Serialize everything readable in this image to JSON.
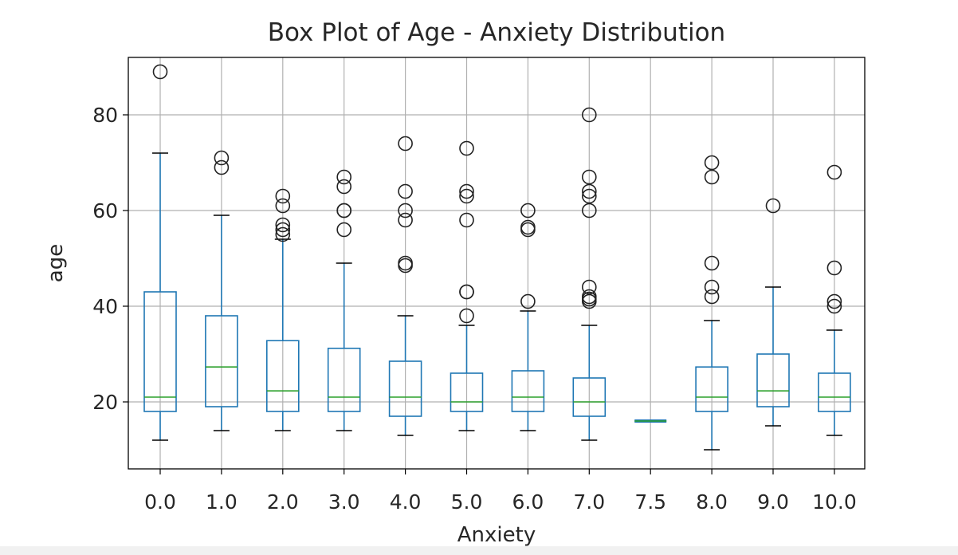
{
  "chart_data": {
    "type": "box",
    "title": "Box Plot of Age - Anxiety Distribution",
    "xlabel": "Anxiety",
    "ylabel": "age",
    "categories": [
      "0.0",
      "1.0",
      "2.0",
      "3.0",
      "4.0",
      "5.0",
      "6.0",
      "7.0",
      "7.5",
      "8.0",
      "9.0",
      "10.0"
    ],
    "y_ticks": [
      20,
      40,
      60,
      80
    ],
    "ylim": [
      6,
      92
    ],
    "grid": true,
    "colors": {
      "box": "#1f77b4",
      "median": "#2ca02c",
      "flier": "#222222",
      "grid": "#b0b0b0"
    },
    "boxes": [
      {
        "category": "0.0",
        "whislo": 12,
        "q1": 18,
        "med": 21,
        "q3": 43,
        "whishi": 72,
        "fliers": [
          89
        ]
      },
      {
        "category": "1.0",
        "whislo": 14,
        "q1": 19,
        "med": 27.3,
        "q3": 38,
        "whishi": 59,
        "fliers": [
          69,
          71
        ]
      },
      {
        "category": "2.0",
        "whislo": 14,
        "q1": 18,
        "med": 22.3,
        "q3": 32.8,
        "whishi": 54,
        "fliers": [
          55,
          56,
          57,
          61,
          63
        ]
      },
      {
        "category": "3.0",
        "whislo": 14,
        "q1": 18,
        "med": 21,
        "q3": 31.2,
        "whishi": 49,
        "fliers": [
          56,
          60,
          60,
          65,
          67
        ]
      },
      {
        "category": "4.0",
        "whislo": 13,
        "q1": 17,
        "med": 21,
        "q3": 28.5,
        "whishi": 38,
        "fliers": [
          48.5,
          49,
          58,
          60,
          64,
          74
        ]
      },
      {
        "category": "5.0",
        "whislo": 14,
        "q1": 18,
        "med": 20,
        "q3": 26,
        "whishi": 36,
        "fliers": [
          38,
          43,
          43,
          58,
          63,
          64,
          73
        ]
      },
      {
        "category": "6.0",
        "whislo": 14,
        "q1": 18,
        "med": 21,
        "q3": 26.5,
        "whishi": 39,
        "fliers": [
          41,
          56,
          56.5,
          60
        ]
      },
      {
        "category": "7.0",
        "whislo": 12,
        "q1": 17,
        "med": 20,
        "q3": 25,
        "whishi": 36,
        "fliers": [
          41,
          41.5,
          42,
          44,
          60,
          63,
          64,
          67,
          80
        ]
      },
      {
        "category": "7.5",
        "whislo": 16,
        "q1": 16,
        "med": 16,
        "q3": 16,
        "whishi": 16,
        "fliers": []
      },
      {
        "category": "8.0",
        "whislo": 10,
        "q1": 18,
        "med": 21,
        "q3": 27.3,
        "whishi": 37,
        "fliers": [
          42,
          44,
          49,
          67,
          70
        ]
      },
      {
        "category": "9.0",
        "whislo": 15,
        "q1": 19,
        "med": 22.3,
        "q3": 30,
        "whishi": 44,
        "fliers": [
          61
        ]
      },
      {
        "category": "10.0",
        "whislo": 13,
        "q1": 18,
        "med": 21,
        "q3": 26,
        "whishi": 35,
        "fliers": [
          40,
          41,
          48,
          68
        ]
      }
    ]
  }
}
